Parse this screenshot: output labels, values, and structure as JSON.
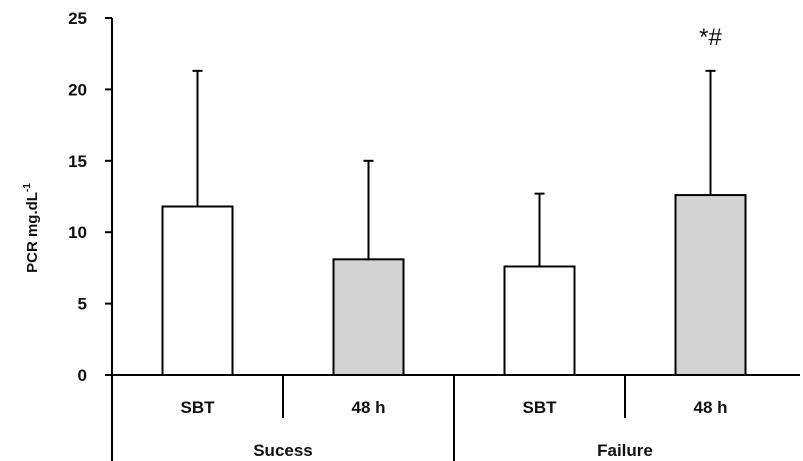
{
  "chart_data": {
    "type": "bar",
    "ylabel": "PCR mg.dL",
    "ylabel_superscript": "-1",
    "ylim": [
      0,
      25
    ],
    "yticks": [
      0,
      5,
      10,
      15,
      20,
      25
    ],
    "grid": false,
    "categories": [
      "SBT",
      "48 h",
      "SBT",
      "48 h"
    ],
    "groups": [
      "Sucess",
      "Failure"
    ],
    "values": [
      11.8,
      8.1,
      7.6,
      12.6
    ],
    "errors": [
      9.5,
      6.9,
      5.1,
      8.7
    ],
    "bar_colors": [
      "#ffffff",
      "#d3d3d3",
      "#ffffff",
      "#d3d3d3"
    ],
    "annotations": [
      {
        "index": 3,
        "text": "*#"
      }
    ]
  }
}
